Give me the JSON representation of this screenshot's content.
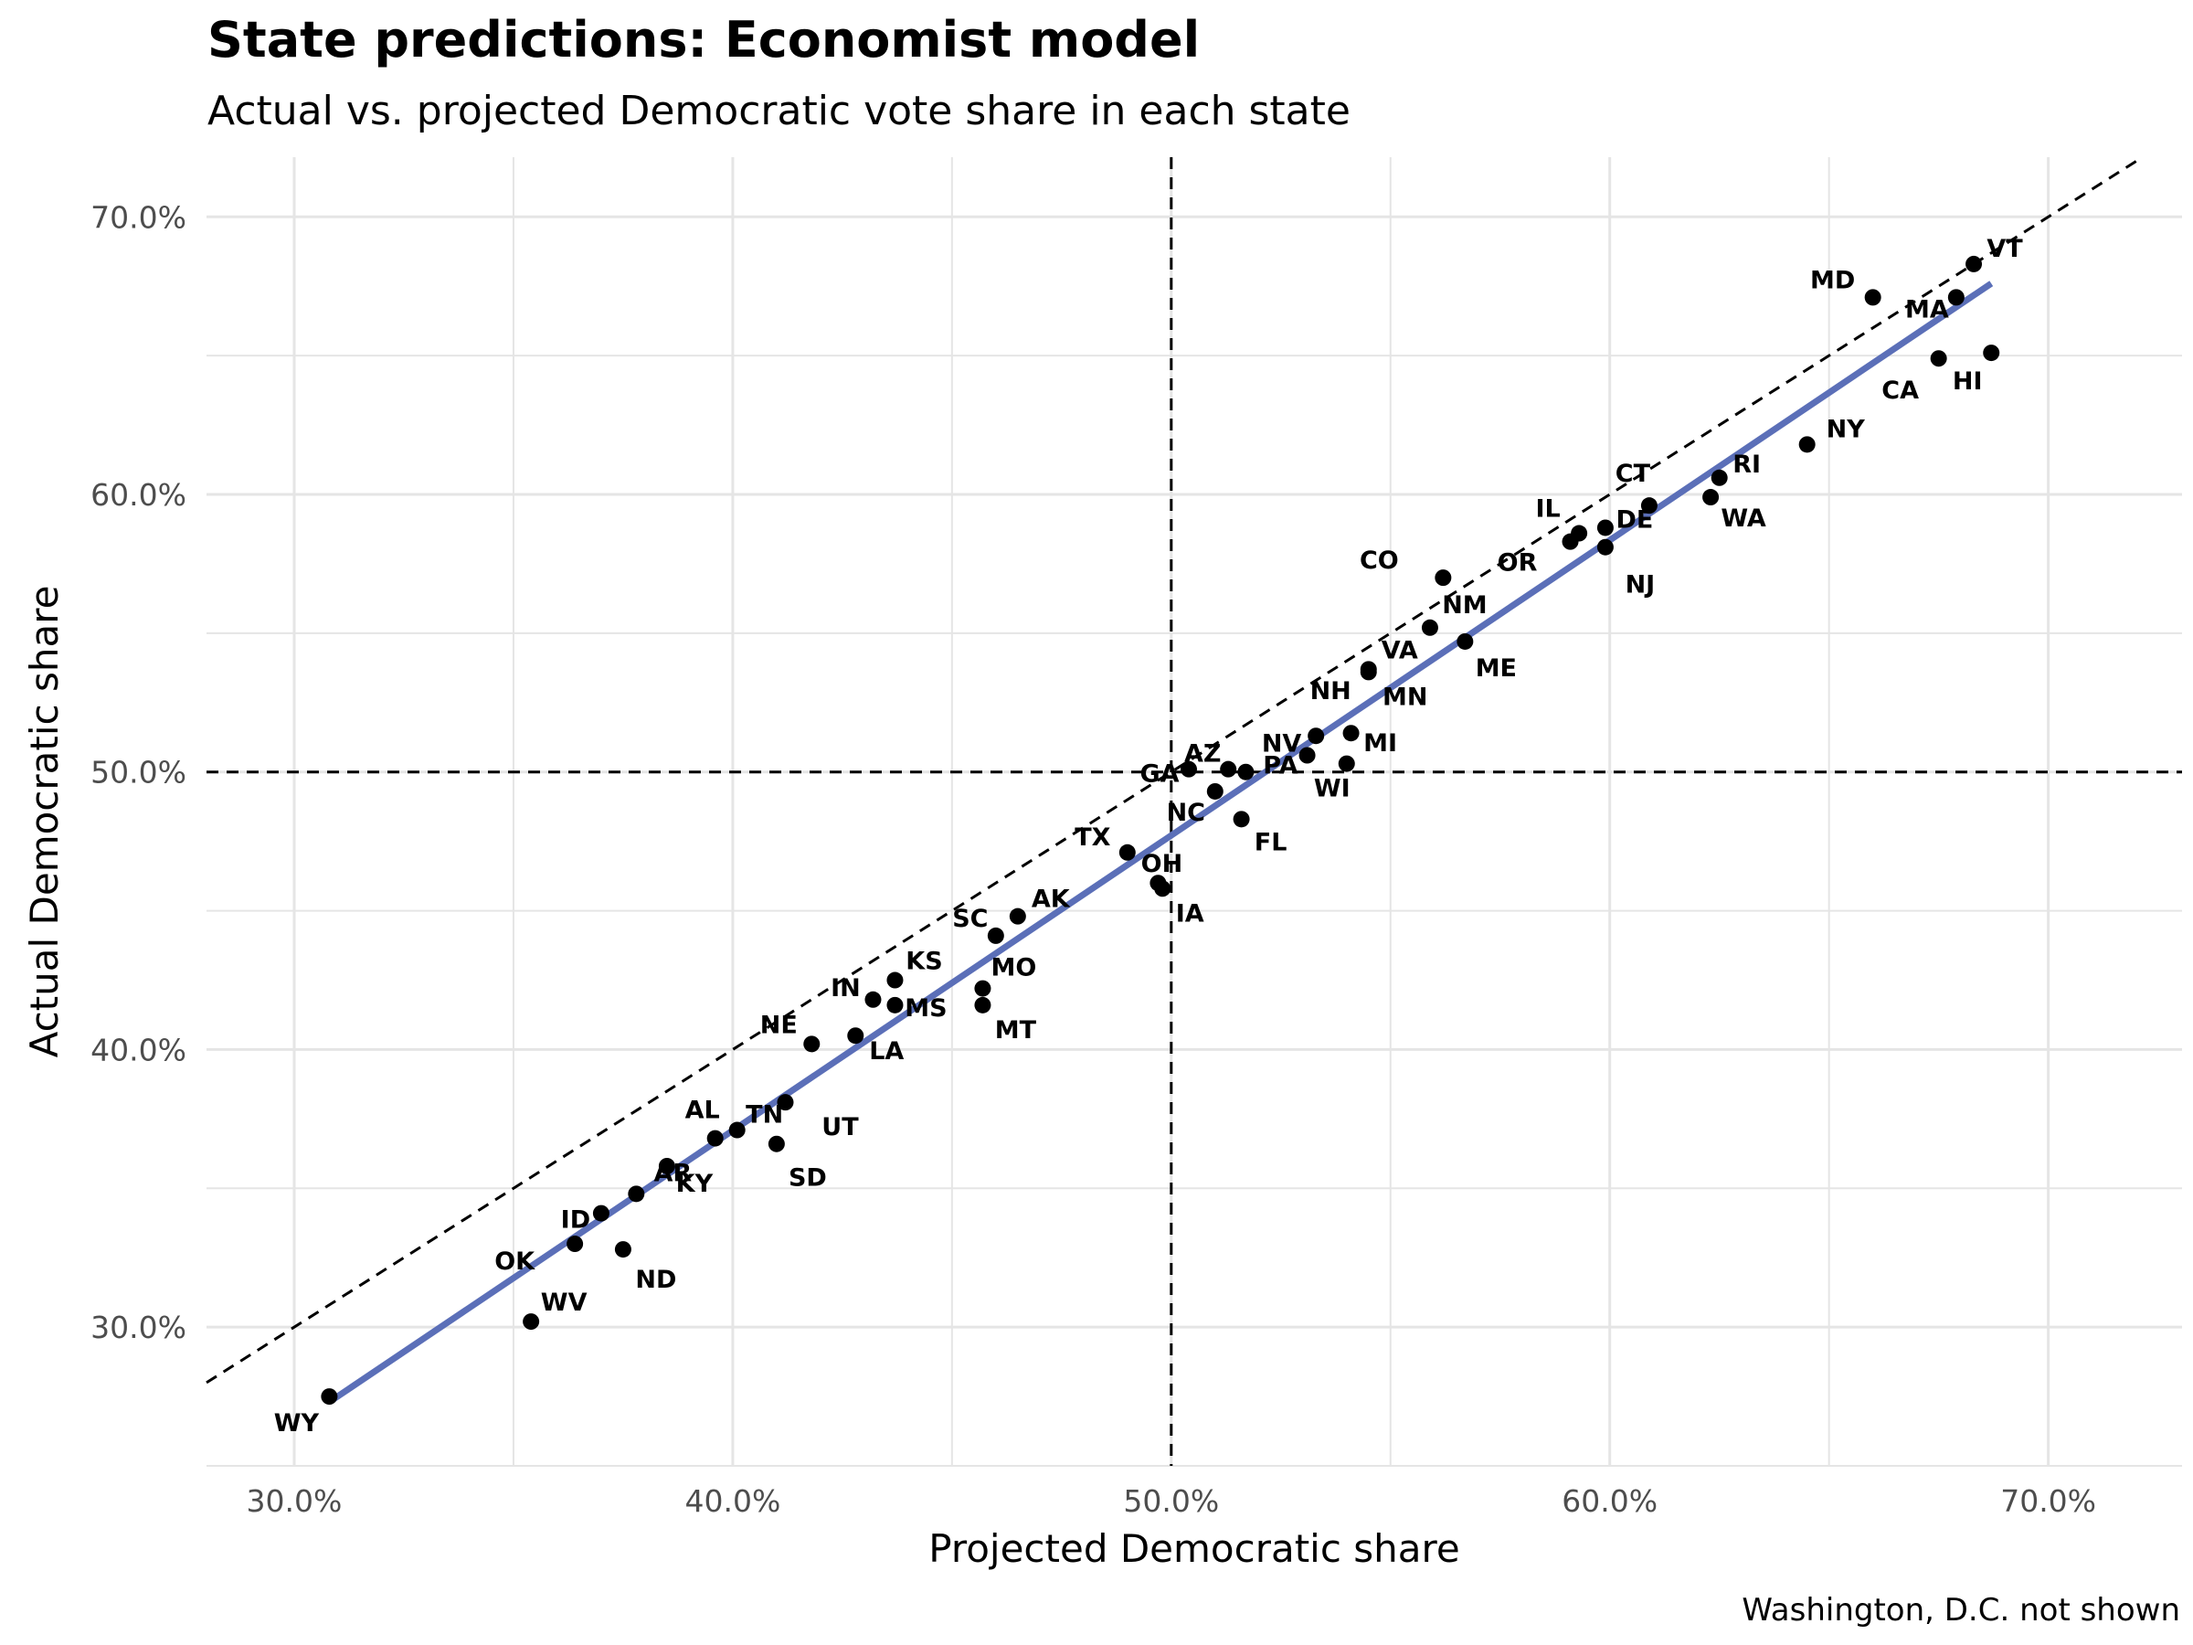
{
  "chart_data": {
    "type": "scatter",
    "title": "State predictions: Economist model",
    "subtitle": "Actual vs. projected Democratic vote share in each state",
    "caption": "Washington, D.C. not shown",
    "xlabel": "Projected Democratic share",
    "ylabel": "Actual Democratic share",
    "xlim": [
      0.28,
      0.7305
    ],
    "ylim": [
      0.25,
      0.7215
    ],
    "x_ticks": [
      0.3,
      0.4,
      0.5,
      0.6,
      0.7
    ],
    "x_tick_labels": [
      "30.0%",
      "40.0%",
      "50.0%",
      "60.0%",
      "70.0%"
    ],
    "y_ticks": [
      0.3,
      0.4,
      0.5,
      0.6,
      0.7
    ],
    "y_tick_labels": [
      "30.0%",
      "40.0%",
      "50.0%",
      "60.0%",
      "70.0%"
    ],
    "grid": true,
    "reference_lines": {
      "vertical": 0.5,
      "horizontal": 0.5,
      "diagonal": "y = x",
      "style": "dashed",
      "color": "#000000"
    },
    "trend_line": {
      "x": [
        0.308,
        0.687
      ],
      "y": [
        0.273,
        0.676
      ],
      "color": "#5b6fb8"
    },
    "point_color": "#000000",
    "points": [
      {
        "label": "WY",
        "x": 0.308,
        "y": 0.275
      },
      {
        "label": "WV",
        "x": 0.354,
        "y": 0.302
      },
      {
        "label": "OK",
        "x": 0.364,
        "y": 0.33
      },
      {
        "label": "ND",
        "x": 0.375,
        "y": 0.328
      },
      {
        "label": "ID",
        "x": 0.37,
        "y": 0.341
      },
      {
        "label": "AR",
        "x": 0.378,
        "y": 0.348
      },
      {
        "label": "KY",
        "x": 0.385,
        "y": 0.358
      },
      {
        "label": "AL",
        "x": 0.396,
        "y": 0.368
      },
      {
        "label": "TN",
        "x": 0.401,
        "y": 0.371
      },
      {
        "label": "SD",
        "x": 0.41,
        "y": 0.366
      },
      {
        "label": "UT",
        "x": 0.412,
        "y": 0.381
      },
      {
        "label": "NE",
        "x": 0.418,
        "y": 0.402
      },
      {
        "label": "LA",
        "x": 0.428,
        "y": 0.405
      },
      {
        "label": "IN",
        "x": 0.432,
        "y": 0.418
      },
      {
        "label": "MS",
        "x": 0.437,
        "y": 0.416
      },
      {
        "label": "KS",
        "x": 0.437,
        "y": 0.425
      },
      {
        "label": "SC",
        "x": 0.46,
        "y": 0.441
      },
      {
        "label": "AK",
        "x": 0.465,
        "y": 0.448
      },
      {
        "label": "MO",
        "x": 0.457,
        "y": 0.422
      },
      {
        "label": "MT",
        "x": 0.457,
        "y": 0.416
      },
      {
        "label": "TX",
        "x": 0.49,
        "y": 0.471
      },
      {
        "label": "OH",
        "x": 0.497,
        "y": 0.46
      },
      {
        "label": "IA",
        "x": 0.498,
        "y": 0.458
      },
      {
        "label": "GA",
        "x": 0.504,
        "y": 0.501
      },
      {
        "label": "AZ",
        "x": 0.513,
        "y": 0.501
      },
      {
        "label": "NC",
        "x": 0.51,
        "y": 0.493
      },
      {
        "label": "PA",
        "x": 0.517,
        "y": 0.5
      },
      {
        "label": "FL",
        "x": 0.516,
        "y": 0.483
      },
      {
        "label": "NV",
        "x": 0.531,
        "y": 0.506
      },
      {
        "label": "WI",
        "x": 0.54,
        "y": 0.503
      },
      {
        "label": "NH",
        "x": 0.533,
        "y": 0.513
      },
      {
        "label": "MI",
        "x": 0.541,
        "y": 0.514
      },
      {
        "label": "VA",
        "x": 0.545,
        "y": 0.537
      },
      {
        "label": "MN",
        "x": 0.545,
        "y": 0.536
      },
      {
        "label": "NM",
        "x": 0.559,
        "y": 0.552
      },
      {
        "label": "CO",
        "x": 0.562,
        "y": 0.57
      },
      {
        "label": "ME",
        "x": 0.567,
        "y": 0.547
      },
      {
        "label": "OR",
        "x": 0.591,
        "y": 0.583
      },
      {
        "label": "IL",
        "x": 0.593,
        "y": 0.586
      },
      {
        "label": "DE",
        "x": 0.599,
        "y": 0.588
      },
      {
        "label": "NJ",
        "x": 0.599,
        "y": 0.581
      },
      {
        "label": "CT",
        "x": 0.609,
        "y": 0.596
      },
      {
        "label": "RI",
        "x": 0.625,
        "y": 0.606
      },
      {
        "label": "WA",
        "x": 0.623,
        "y": 0.599
      },
      {
        "label": "NY",
        "x": 0.645,
        "y": 0.618
      },
      {
        "label": "MD",
        "x": 0.66,
        "y": 0.671
      },
      {
        "label": "CA",
        "x": 0.675,
        "y": 0.649
      },
      {
        "label": "MA",
        "x": 0.679,
        "y": 0.671
      },
      {
        "label": "VT",
        "x": 0.683,
        "y": 0.683
      },
      {
        "label": "HI",
        "x": 0.687,
        "y": 0.651
      }
    ]
  }
}
